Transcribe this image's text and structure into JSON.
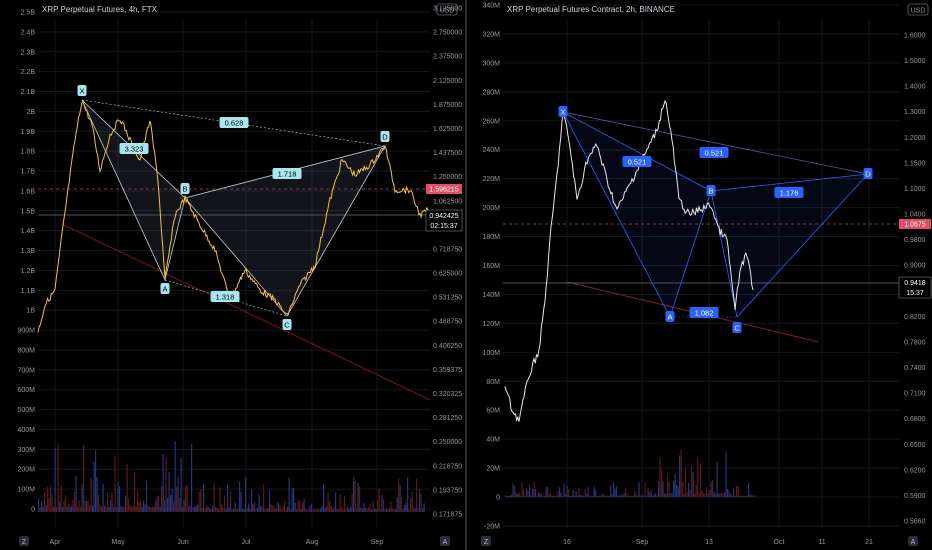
{
  "chart_data": [
    {
      "type": "line",
      "title": "XRP Perpetual Futures, 4h, FTX",
      "x_ticks": [
        "Apr",
        "May",
        "Jun",
        "Jul",
        "Aug",
        "Sep"
      ],
      "left_axis_ticks": [
        "2.5B",
        "2.4B",
        "2.3B",
        "2.2B",
        "2.1B",
        "2B",
        "1.9B",
        "1.8B",
        "1.7B",
        "1.6B",
        "1.5B",
        "1.4B",
        "1.3B",
        "1.2B",
        "1.1B",
        "1B",
        "900M",
        "800M",
        "700M",
        "600M",
        "500M",
        "400M",
        "300M",
        "200M",
        "100M",
        "0"
      ],
      "right_axis_ticks": [
        "3.125000",
        "2.750000",
        "2.375000",
        "2.125000",
        "1.875000",
        "1.625000",
        "1.437500",
        "1.250000",
        "1.062500",
        "0.812500",
        "0.718750",
        "0.625000",
        "0.531250",
        "0.468750",
        "0.406250",
        "0.359375",
        "0.320325",
        "0.281250",
        "0.250000",
        "0.218750",
        "0.193750",
        "0.171875"
      ],
      "scale": "log",
      "current_price_label": "0.942425",
      "countdown_label": "02:15:37",
      "dashed_level_label": "1.596215",
      "currency_badge": "USD",
      "price": {
        "x": [
          "Apr",
          "May",
          "Jun",
          "Jul",
          "Aug",
          "Sep"
        ],
        "y": [
          1.35,
          1.4,
          1.05,
          0.6,
          1.2,
          1.0
        ]
      },
      "pattern": {
        "points": {
          "X": 1.93,
          "A": 0.66,
          "B": 1.33,
          "C": 0.52,
          "D": 1.44
        },
        "ratios": [
          "0.628",
          "3.323",
          "1.718",
          "1.318"
        ]
      },
      "colors": {
        "price": "#f5c242",
        "pattern_stroke": "#c8ccd4",
        "trendline": "#8b1a1a",
        "volume_up": "#2a3f8f",
        "volume_down": "#6b1f1f"
      }
    },
    {
      "type": "line",
      "title": "XRP Perpetual Futures Contract, 2h, BINANCE",
      "x_ticks": [
        "16",
        "Sep",
        "13",
        "Oct",
        "11",
        "21"
      ],
      "left_axis_ticks": [
        "340M",
        "320M",
        "300M",
        "280M",
        "260M",
        "240M",
        "220M",
        "200M",
        "180M",
        "160M",
        "140M",
        "120M",
        "100M",
        "80M",
        "60M",
        "40M",
        "20M",
        "0",
        "-20M"
      ],
      "right_axis_ticks": [
        "1.6000",
        "1.5000",
        "1.4000",
        "1.3000",
        "1.2000",
        "1.1500",
        "1.1000",
        "1.0400",
        "0.9800",
        "0.9000",
        "0.8600",
        "0.8200",
        "0.7800",
        "0.7400",
        "0.7100",
        "0.6800",
        "0.6500",
        "0.6200",
        "0.5900",
        "0.5660"
      ],
      "scale": "log",
      "current_price_label": "0.9418",
      "countdown_label": "15:37",
      "dashed_level_label": "1.0675",
      "currency_badge": "USD",
      "price": {
        "x": [
          "16",
          "Sep",
          "13"
        ],
        "y": [
          1.25,
          1.05,
          0.94
        ]
      },
      "pattern": {
        "points": {
          "X": 1.34,
          "A": 0.87,
          "B": 1.1,
          "C": 0.86,
          "D": 1.18
        },
        "ratios": [
          "0.521",
          "0.521",
          "1.176",
          "1.082"
        ]
      },
      "colors": {
        "price": "#e0e0e0",
        "pattern_stroke": "#2962ff",
        "trendline": "#7a1f2a",
        "volume_up": "#2a3f8f",
        "volume_down": "#6b1f1f"
      }
    }
  ]
}
